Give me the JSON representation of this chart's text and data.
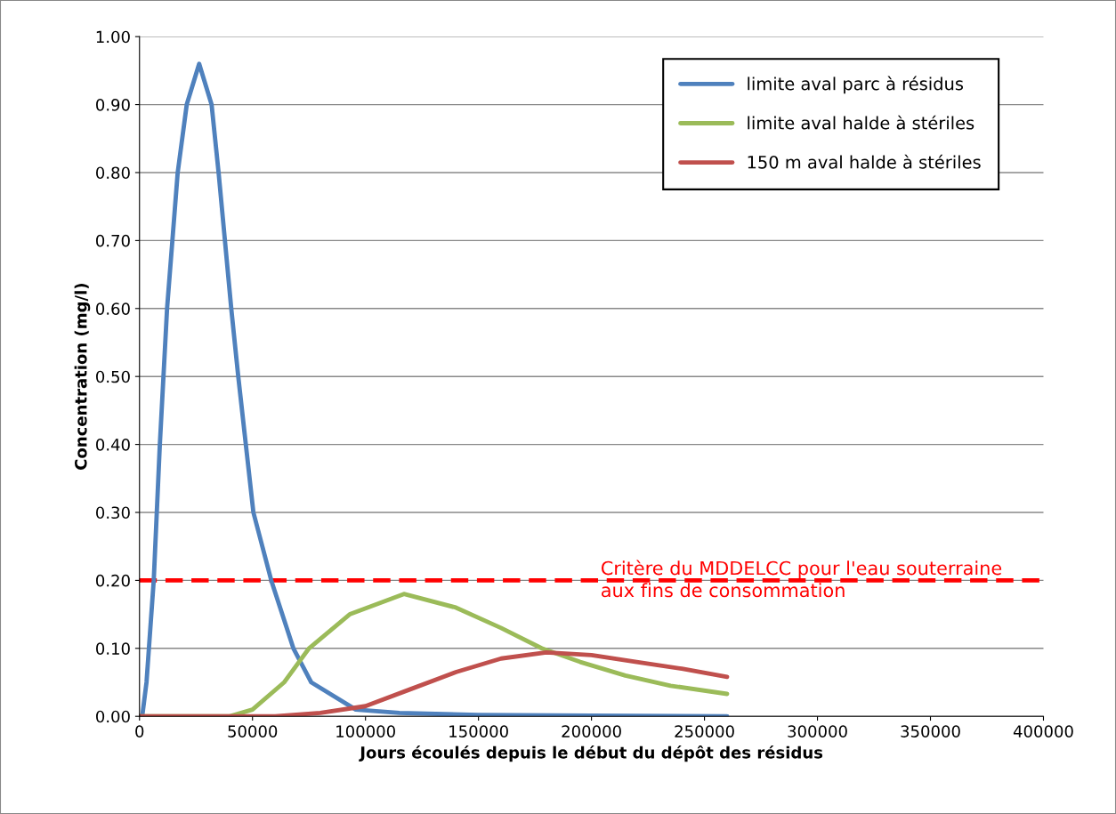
{
  "chart_data": {
    "type": "line",
    "xlabel": "Jours écoulés depuis le début du dépôt des résidus",
    "ylabel": "Concentration (mg/l)",
    "xlim": [
      0,
      400000
    ],
    "xticks": [
      0,
      50000,
      100000,
      150000,
      200000,
      250000,
      300000,
      350000,
      400000
    ],
    "ylim": [
      0,
      1.0
    ],
    "yticks": [
      {
        "value": 0,
        "label": "0.00"
      },
      {
        "value": 0.1,
        "label": "0.10"
      },
      {
        "value": 0.2,
        "label": "0.20"
      },
      {
        "value": 0.3,
        "label": "0.30"
      },
      {
        "value": 0.4,
        "label": "0.40"
      },
      {
        "value": 0.5,
        "label": "0.50"
      },
      {
        "value": 0.6,
        "label": "0.60"
      },
      {
        "value": 0.7,
        "label": "0.70"
      },
      {
        "value": 0.8,
        "label": "0.80"
      },
      {
        "value": 0.9,
        "label": "0.90"
      },
      {
        "value": 1.0,
        "label": "1.00"
      }
    ],
    "grid": "y",
    "legend": "top right",
    "marker": "none",
    "line_style": "solid",
    "series": [
      {
        "name": "limite aval parc à résidus",
        "color": "#4f81bd",
        "x": [
          0,
          1200,
          3100,
          6300,
          9000,
          12200,
          16900,
          20900,
          26400,
          31900,
          35000,
          37800,
          40600,
          43700,
          50400,
          58300,
          68100,
          76000,
          95700,
          115000,
          150000,
          200000,
          260000
        ],
        "values": [
          0,
          0,
          0.05,
          0.2,
          0.4,
          0.6,
          0.8,
          0.9,
          0.96,
          0.9,
          0.8,
          0.7,
          0.6,
          0.5,
          0.3,
          0.2,
          0.1,
          0.05,
          0.01,
          0.005,
          0.002,
          0.001,
          0
        ]
      },
      {
        "name": "limite aval halde à stériles",
        "color": "#9bbb59",
        "x": [
          0,
          40000,
          50000,
          64000,
          75000,
          93000,
          117000,
          140000,
          160000,
          178000,
          195000,
          215000,
          235000,
          260000
        ],
        "values": [
          0,
          0,
          0.01,
          0.05,
          0.1,
          0.15,
          0.18,
          0.16,
          0.13,
          0.1,
          0.08,
          0.06,
          0.045,
          0.033
        ]
      },
      {
        "name": "150 m aval halde à stériles",
        "color": "#c0504d",
        "x": [
          0,
          60000,
          80000,
          100000,
          120000,
          140000,
          160000,
          180000,
          200000,
          220000,
          240000,
          260000
        ],
        "values": [
          0,
          0,
          0.005,
          0.015,
          0.04,
          0.065,
          0.085,
          0.094,
          0.09,
          0.08,
          0.07,
          0.058
        ]
      }
    ],
    "ref_lines": [
      {
        "axis": "y",
        "value": 0.2,
        "label": "Critère du MDDELCC pour l'eau souterraine\naux fins de consommation",
        "color": "#ff0000",
        "line_style": "dashed"
      }
    ]
  }
}
